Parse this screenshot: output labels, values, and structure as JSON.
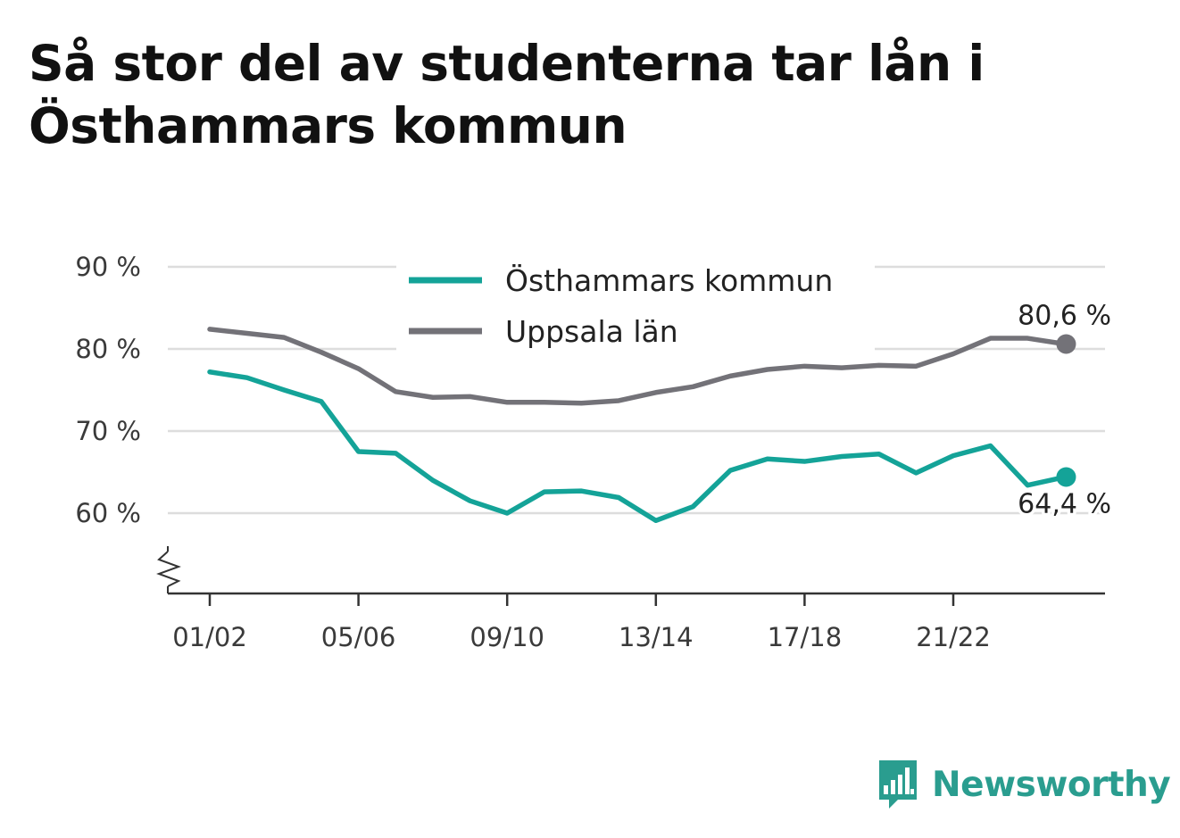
{
  "brand": {
    "name": "Newsworthy",
    "color": "#2a9d8f",
    "icon": "bar-chart-speech-bubble-icon"
  },
  "chart_data": {
    "type": "line",
    "title": "Så stor del av studenterna tar lån i Östhammars kommun",
    "xlabel": "",
    "ylabel": "",
    "x": [
      "01/02",
      "02/03",
      "03/04",
      "04/05",
      "05/06",
      "06/07",
      "07/08",
      "08/09",
      "09/10",
      "10/11",
      "11/12",
      "12/13",
      "13/14",
      "14/15",
      "15/16",
      "16/17",
      "17/18",
      "18/19",
      "19/20",
      "20/21",
      "21/22",
      "22/23",
      "23/24",
      "24/25"
    ],
    "x_tick_labels": [
      "01/02",
      "05/06",
      "09/10",
      "13/14",
      "17/18",
      "21/22"
    ],
    "y_ticks": [
      60,
      70,
      80,
      90
    ],
    "y_tick_labels": [
      "60 %",
      "70 %",
      "80 %",
      "90 %"
    ],
    "ylim": [
      50,
      90
    ],
    "y_axis_break": true,
    "grid": "horizontal",
    "legend_position": "top-center",
    "series": [
      {
        "name": "Östhammars kommun",
        "color": "#14a398",
        "values": [
          77.2,
          76.5,
          75.0,
          73.6,
          67.5,
          67.3,
          64.0,
          61.5,
          60.0,
          62.6,
          62.7,
          61.9,
          59.1,
          60.8,
          65.2,
          66.6,
          66.3,
          66.9,
          67.2,
          64.9,
          67.0,
          68.2,
          63.4,
          64.4
        ],
        "end_label": "64,4 %"
      },
      {
        "name": "Uppsala län",
        "color": "#737278",
        "values": [
          82.4,
          81.9,
          81.4,
          79.6,
          77.6,
          74.8,
          74.1,
          74.2,
          73.5,
          73.5,
          73.4,
          73.7,
          74.7,
          75.4,
          76.7,
          77.5,
          77.9,
          77.7,
          78.0,
          77.9,
          79.4,
          81.3,
          81.3,
          80.6
        ],
        "end_label": "80,6 %"
      }
    ]
  }
}
